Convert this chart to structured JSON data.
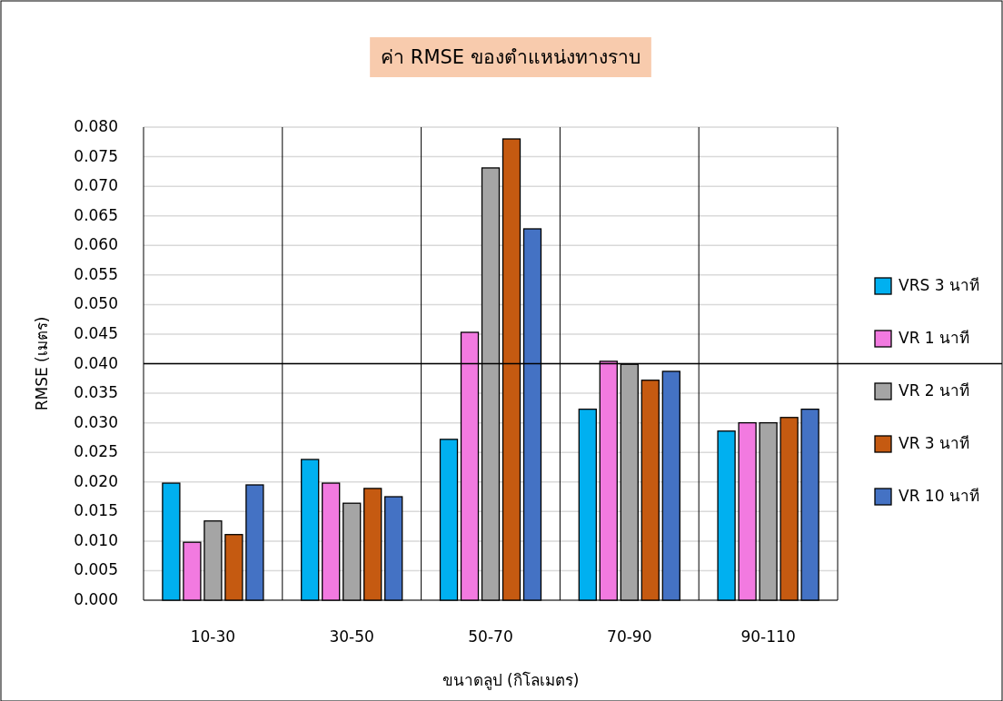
{
  "chart_data": {
    "type": "bar",
    "title": "ค่า RMSE ของตำแหน่งทางราบ",
    "xlabel": "ขนาดลูป (กิโลเมตร)",
    "ylabel": "RMSE (เมตร)",
    "categories": [
      "10-30",
      "30-50",
      "50-70",
      "70-90",
      "90-110"
    ],
    "series": [
      {
        "name": "VRS 3 นาที",
        "color": "#00b0f0",
        "values": [
          0.0198,
          0.0238,
          0.0272,
          0.0323,
          0.0286
        ]
      },
      {
        "name": "VR 1 นาที",
        "color": "#f27ae0",
        "values": [
          0.0098,
          0.0198,
          0.0453,
          0.0404,
          0.03
        ]
      },
      {
        "name": "VR 2 นาที",
        "color": "#a5a5a5",
        "values": [
          0.0134,
          0.0164,
          0.0731,
          0.0399,
          0.03
        ]
      },
      {
        "name": "VR 3 นาที",
        "color": "#c55a11",
        "values": [
          0.0111,
          0.0189,
          0.078,
          0.0372,
          0.0309
        ]
      },
      {
        "name": "VR 10 นาที",
        "color": "#4472c4",
        "values": [
          0.0195,
          0.0175,
          0.0628,
          0.0387,
          0.0323
        ]
      }
    ],
    "ylim": [
      0,
      0.08
    ],
    "yticks": [
      {
        "value": 0,
        "label": "0.000"
      },
      {
        "value": 0.005,
        "label": "0.005"
      },
      {
        "value": 0.01,
        "label": "0.010"
      },
      {
        "value": 0.015,
        "label": "0.015"
      },
      {
        "value": 0.02,
        "label": "0.020"
      },
      {
        "value": 0.025,
        "label": "0.025"
      },
      {
        "value": 0.03,
        "label": "0.030"
      },
      {
        "value": 0.035,
        "label": "0.035"
      },
      {
        "value": 0.04,
        "label": "0.040"
      },
      {
        "value": 0.045,
        "label": "0.045"
      },
      {
        "value": 0.05,
        "label": "0.050"
      },
      {
        "value": 0.055,
        "label": "0.055"
      },
      {
        "value": 0.06,
        "label": "0.060"
      },
      {
        "value": 0.065,
        "label": "0.065"
      },
      {
        "value": 0.07,
        "label": "0.070"
      },
      {
        "value": 0.075,
        "label": "0.075"
      },
      {
        "value": 0.08,
        "label": "0.080"
      }
    ],
    "ref_lines": [
      {
        "axis": "y",
        "value": 0.04,
        "color": "#000000"
      }
    ],
    "grid": true,
    "legend": "right"
  }
}
